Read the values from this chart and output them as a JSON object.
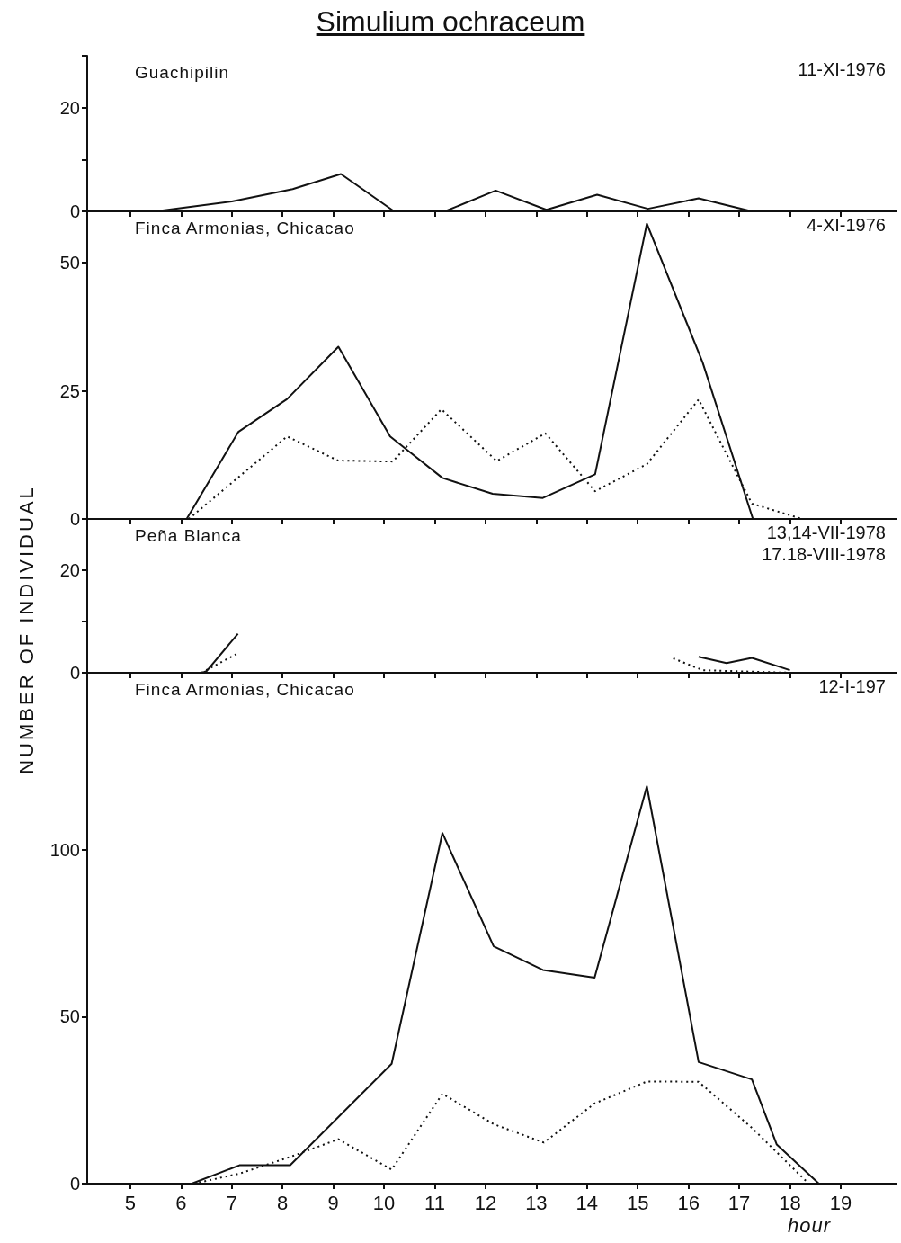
{
  "chart_data": [
    {
      "type": "line",
      "title": "Simulium ochraceum",
      "annotations": [
        "Guachipilin",
        "11-XI-1976"
      ],
      "xlim": [
        4.15,
        20.1
      ],
      "xticks": [
        5,
        6,
        7,
        8,
        9,
        10,
        11,
        12,
        13,
        14,
        15,
        16,
        17,
        18,
        19
      ],
      "ylim": [
        0,
        30
      ],
      "yticks": [
        0,
        {
          "value": 10,
          "label": null
        },
        20,
        {
          "value": 30,
          "label": null
        }
      ],
      "tick_labels": "y",
      "marker": "none",
      "grid": false,
      "series": [
        {
          "color": "#111111",
          "line_style": "solid",
          "x": [
            5.5,
            7.0,
            8.2,
            9.15,
            10.2,
            11.2,
            12.2,
            13.2,
            14.2,
            15.2,
            16.2,
            17.25
          ],
          "values": [
            0,
            1.9,
            4.3,
            7.2,
            0,
            0,
            4.0,
            0.3,
            3.2,
            0.5,
            2.5,
            0
          ]
        }
      ]
    },
    {
      "type": "line",
      "annotations": [
        "Finca Armonias, Chicacao",
        "4-XI-1976"
      ],
      "xlim": [
        4.15,
        20.1
      ],
      "xticks": [
        5,
        6,
        7,
        8,
        9,
        10,
        11,
        12,
        13,
        14,
        15,
        16,
        17,
        18,
        19
      ],
      "ylim": [
        0,
        60
      ],
      "yticks": [
        0,
        25,
        50,
        {
          "value": 60,
          "label": null
        }
      ],
      "tick_labels": "y",
      "marker": "none",
      "grid": false,
      "series": [
        {
          "color": "#111111",
          "line_style": "solid",
          "x": [
            6.11,
            7.13,
            8.09,
            9.1,
            10.12,
            11.15,
            12.14,
            13.13,
            14.16,
            15.18,
            16.28,
            17.27
          ],
          "values": [
            0,
            17.0,
            23.4,
            33.6,
            16.1,
            8.0,
            4.9,
            4.1,
            8.7,
            57.6,
            30.5,
            0
          ]
        },
        {
          "color": "#111111",
          "line_style": "dotted",
          "x": [
            6.15,
            8.09,
            9.09,
            10.17,
            11.13,
            12.22,
            13.18,
            14.16,
            15.18,
            16.2,
            17.25,
            18.24
          ],
          "values": [
            0,
            16.1,
            11.4,
            11.2,
            21.4,
            11.3,
            16.7,
            5.4,
            10.7,
            23.3,
            3.0,
            0
          ]
        }
      ]
    },
    {
      "type": "line",
      "annotations": [
        "Peña Blanca",
        "13,14-VII-1978",
        "17.18-VIII-1978"
      ],
      "xlim": [
        4.15,
        20.1
      ],
      "xticks": [
        5,
        6,
        7,
        8,
        9,
        10,
        11,
        12,
        13,
        14,
        15,
        16,
        17,
        18,
        19
      ],
      "ylim": [
        0,
        30
      ],
      "yticks": [
        0,
        {
          "value": 10,
          "label": null
        },
        20,
        {
          "value": 30,
          "label": null
        }
      ],
      "tick_labels": "y",
      "marker": "none",
      "grid": false,
      "series": [
        {
          "color": "#111111",
          "line_style": "solid",
          "x": [
            6.42,
            6.5,
            7.12
          ],
          "values": [
            0,
            0.3,
            7.6
          ]
        },
        {
          "color": "#111111",
          "line_style": "dotted",
          "x": [
            6.4,
            7.12
          ],
          "values": [
            0,
            3.8
          ]
        },
        {
          "color": "#111111",
          "line_style": "solid",
          "x": [
            16.2,
            16.75,
            17.25,
            18.0
          ],
          "values": [
            3.1,
            1.9,
            2.9,
            0.5
          ]
        },
        {
          "color": "#111111",
          "line_style": "dotted",
          "x": [
            15.7,
            16.28,
            18.0
          ],
          "values": [
            2.8,
            0.5,
            0
          ]
        }
      ]
    },
    {
      "type": "line",
      "annotations": [
        "Finca Armonias, Chicacao",
        "12-I-197"
      ],
      "xlabel": "hour",
      "ylabel": "NUMBER OF INDIVIDUAL",
      "xlim": [
        4.15,
        20.1
      ],
      "xticks": [
        5,
        6,
        7,
        8,
        9,
        10,
        11,
        12,
        13,
        14,
        15,
        16,
        17,
        18,
        19
      ],
      "ylim": [
        0,
        153
      ],
      "yticks": [
        0,
        50,
        100
      ],
      "marker": "none",
      "grid": false,
      "series": [
        {
          "color": "#111111",
          "line_style": "solid",
          "x": [
            6.21,
            7.15,
            8.15,
            10.15,
            11.15,
            12.16,
            13.13,
            14.15,
            15.18,
            16.2,
            17.25,
            17.74,
            18.57
          ],
          "values": [
            0,
            5.5,
            5.5,
            35.9,
            105,
            71.1,
            64,
            61.7,
            119,
            36.4,
            31.2,
            11.7,
            0
          ]
        },
        {
          "color": "#111111",
          "line_style": "dotted",
          "x": [
            6.25,
            7.15,
            8.15,
            9.1,
            10.15,
            11.15,
            12.16,
            13.15,
            14.15,
            15.18,
            16.2,
            17.25,
            18.37
          ],
          "values": [
            0,
            3,
            8,
            13.3,
            4.2,
            26.9,
            17.8,
            12.3,
            24,
            30.6,
            30.5,
            16.7,
            0
          ]
        }
      ]
    }
  ]
}
